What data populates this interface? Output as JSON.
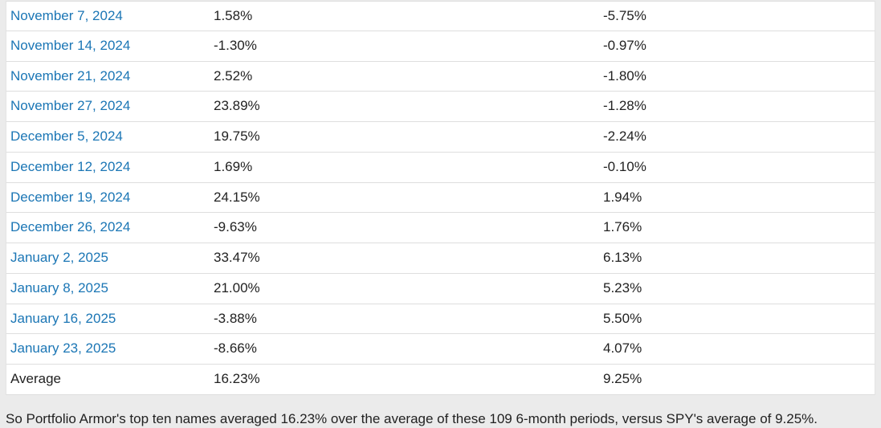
{
  "table": {
    "rows": [
      [
        "November 7, 2024",
        "1.58%",
        "-5.75%"
      ],
      [
        "November 14, 2024",
        "-1.30%",
        "-0.97%"
      ],
      [
        "November 21, 2024",
        "2.52%",
        "-1.80%"
      ],
      [
        "November 27, 2024",
        "23.89%",
        "-1.28%"
      ],
      [
        "December 5, 2024",
        "19.75%",
        "-2.24%"
      ],
      [
        "December 12, 2024",
        "1.69%",
        "-0.10%"
      ],
      [
        "December 19, 2024",
        "24.15%",
        "1.94%"
      ],
      [
        "December 26, 2024",
        "-9.63%",
        "1.76%"
      ],
      [
        "January 2, 2025",
        "33.47%",
        "6.13%"
      ],
      [
        "January 8, 2025",
        "21.00%",
        "5.23%"
      ],
      [
        "January 16, 2025",
        "-3.88%",
        "5.50%"
      ],
      [
        "January 23, 2025",
        "-8.66%",
        "4.07%"
      ],
      [
        "Average",
        "16.23%",
        "9.25%"
      ]
    ]
  },
  "footer": "So Portfolio Armor's top ten names averaged 16.23% over the average of these 109 6-month periods, versus SPY's average of 9.25%."
}
